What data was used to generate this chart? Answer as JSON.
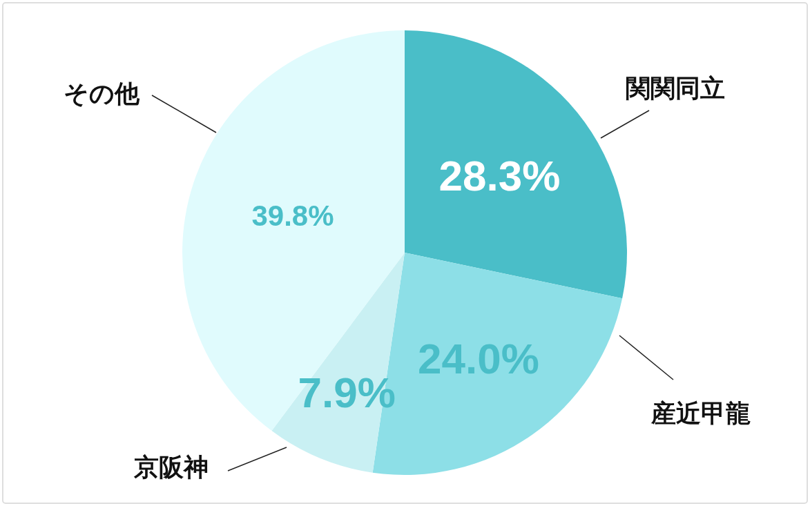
{
  "chart_data": {
    "type": "pie",
    "categories": [
      "関関同立",
      "産近甲龍",
      "京阪神",
      "その他"
    ],
    "values": [
      28.3,
      24.0,
      7.9,
      39.8
    ],
    "colors": [
      "#4abec8",
      "#8ddfe7",
      "#c9f0f3",
      "#e0fbfd"
    ],
    "value_labels": [
      "28.3%",
      "24.0%",
      "7.9%",
      "39.8%"
    ]
  }
}
